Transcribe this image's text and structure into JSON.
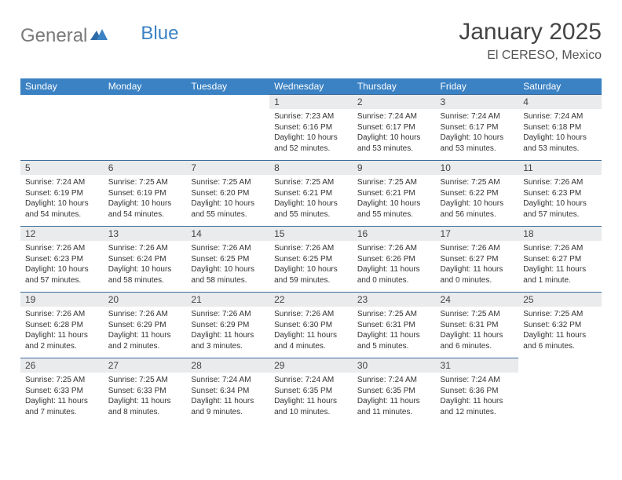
{
  "brand": {
    "part1": "General",
    "part2": "Blue"
  },
  "title": "January 2025",
  "location": "El CERESO, Mexico",
  "accent_color": "#3b82c4",
  "day_header_bg": "#e9ebed",
  "row_border_color": "#3b6a99",
  "weekdays": [
    "Sunday",
    "Monday",
    "Tuesday",
    "Wednesday",
    "Thursday",
    "Friday",
    "Saturday"
  ],
  "weeks": [
    [
      null,
      null,
      null,
      {
        "d": "1",
        "sr": "Sunrise: 7:23 AM",
        "ss": "Sunset: 6:16 PM",
        "dl1": "Daylight: 10 hours",
        "dl2": "and 52 minutes."
      },
      {
        "d": "2",
        "sr": "Sunrise: 7:24 AM",
        "ss": "Sunset: 6:17 PM",
        "dl1": "Daylight: 10 hours",
        "dl2": "and 53 minutes."
      },
      {
        "d": "3",
        "sr": "Sunrise: 7:24 AM",
        "ss": "Sunset: 6:17 PM",
        "dl1": "Daylight: 10 hours",
        "dl2": "and 53 minutes."
      },
      {
        "d": "4",
        "sr": "Sunrise: 7:24 AM",
        "ss": "Sunset: 6:18 PM",
        "dl1": "Daylight: 10 hours",
        "dl2": "and 53 minutes."
      }
    ],
    [
      {
        "d": "5",
        "sr": "Sunrise: 7:24 AM",
        "ss": "Sunset: 6:19 PM",
        "dl1": "Daylight: 10 hours",
        "dl2": "and 54 minutes."
      },
      {
        "d": "6",
        "sr": "Sunrise: 7:25 AM",
        "ss": "Sunset: 6:19 PM",
        "dl1": "Daylight: 10 hours",
        "dl2": "and 54 minutes."
      },
      {
        "d": "7",
        "sr": "Sunrise: 7:25 AM",
        "ss": "Sunset: 6:20 PM",
        "dl1": "Daylight: 10 hours",
        "dl2": "and 55 minutes."
      },
      {
        "d": "8",
        "sr": "Sunrise: 7:25 AM",
        "ss": "Sunset: 6:21 PM",
        "dl1": "Daylight: 10 hours",
        "dl2": "and 55 minutes."
      },
      {
        "d": "9",
        "sr": "Sunrise: 7:25 AM",
        "ss": "Sunset: 6:21 PM",
        "dl1": "Daylight: 10 hours",
        "dl2": "and 55 minutes."
      },
      {
        "d": "10",
        "sr": "Sunrise: 7:25 AM",
        "ss": "Sunset: 6:22 PM",
        "dl1": "Daylight: 10 hours",
        "dl2": "and 56 minutes."
      },
      {
        "d": "11",
        "sr": "Sunrise: 7:26 AM",
        "ss": "Sunset: 6:23 PM",
        "dl1": "Daylight: 10 hours",
        "dl2": "and 57 minutes."
      }
    ],
    [
      {
        "d": "12",
        "sr": "Sunrise: 7:26 AM",
        "ss": "Sunset: 6:23 PM",
        "dl1": "Daylight: 10 hours",
        "dl2": "and 57 minutes."
      },
      {
        "d": "13",
        "sr": "Sunrise: 7:26 AM",
        "ss": "Sunset: 6:24 PM",
        "dl1": "Daylight: 10 hours",
        "dl2": "and 58 minutes."
      },
      {
        "d": "14",
        "sr": "Sunrise: 7:26 AM",
        "ss": "Sunset: 6:25 PM",
        "dl1": "Daylight: 10 hours",
        "dl2": "and 58 minutes."
      },
      {
        "d": "15",
        "sr": "Sunrise: 7:26 AM",
        "ss": "Sunset: 6:25 PM",
        "dl1": "Daylight: 10 hours",
        "dl2": "and 59 minutes."
      },
      {
        "d": "16",
        "sr": "Sunrise: 7:26 AM",
        "ss": "Sunset: 6:26 PM",
        "dl1": "Daylight: 11 hours",
        "dl2": "and 0 minutes."
      },
      {
        "d": "17",
        "sr": "Sunrise: 7:26 AM",
        "ss": "Sunset: 6:27 PM",
        "dl1": "Daylight: 11 hours",
        "dl2": "and 0 minutes."
      },
      {
        "d": "18",
        "sr": "Sunrise: 7:26 AM",
        "ss": "Sunset: 6:27 PM",
        "dl1": "Daylight: 11 hours",
        "dl2": "and 1 minute."
      }
    ],
    [
      {
        "d": "19",
        "sr": "Sunrise: 7:26 AM",
        "ss": "Sunset: 6:28 PM",
        "dl1": "Daylight: 11 hours",
        "dl2": "and 2 minutes."
      },
      {
        "d": "20",
        "sr": "Sunrise: 7:26 AM",
        "ss": "Sunset: 6:29 PM",
        "dl1": "Daylight: 11 hours",
        "dl2": "and 2 minutes."
      },
      {
        "d": "21",
        "sr": "Sunrise: 7:26 AM",
        "ss": "Sunset: 6:29 PM",
        "dl1": "Daylight: 11 hours",
        "dl2": "and 3 minutes."
      },
      {
        "d": "22",
        "sr": "Sunrise: 7:26 AM",
        "ss": "Sunset: 6:30 PM",
        "dl1": "Daylight: 11 hours",
        "dl2": "and 4 minutes."
      },
      {
        "d": "23",
        "sr": "Sunrise: 7:25 AM",
        "ss": "Sunset: 6:31 PM",
        "dl1": "Daylight: 11 hours",
        "dl2": "and 5 minutes."
      },
      {
        "d": "24",
        "sr": "Sunrise: 7:25 AM",
        "ss": "Sunset: 6:31 PM",
        "dl1": "Daylight: 11 hours",
        "dl2": "and 6 minutes."
      },
      {
        "d": "25",
        "sr": "Sunrise: 7:25 AM",
        "ss": "Sunset: 6:32 PM",
        "dl1": "Daylight: 11 hours",
        "dl2": "and 6 minutes."
      }
    ],
    [
      {
        "d": "26",
        "sr": "Sunrise: 7:25 AM",
        "ss": "Sunset: 6:33 PM",
        "dl1": "Daylight: 11 hours",
        "dl2": "and 7 minutes."
      },
      {
        "d": "27",
        "sr": "Sunrise: 7:25 AM",
        "ss": "Sunset: 6:33 PM",
        "dl1": "Daylight: 11 hours",
        "dl2": "and 8 minutes."
      },
      {
        "d": "28",
        "sr": "Sunrise: 7:24 AM",
        "ss": "Sunset: 6:34 PM",
        "dl1": "Daylight: 11 hours",
        "dl2": "and 9 minutes."
      },
      {
        "d": "29",
        "sr": "Sunrise: 7:24 AM",
        "ss": "Sunset: 6:35 PM",
        "dl1": "Daylight: 11 hours",
        "dl2": "and 10 minutes."
      },
      {
        "d": "30",
        "sr": "Sunrise: 7:24 AM",
        "ss": "Sunset: 6:35 PM",
        "dl1": "Daylight: 11 hours",
        "dl2": "and 11 minutes."
      },
      {
        "d": "31",
        "sr": "Sunrise: 7:24 AM",
        "ss": "Sunset: 6:36 PM",
        "dl1": "Daylight: 11 hours",
        "dl2": "and 12 minutes."
      },
      null
    ]
  ]
}
